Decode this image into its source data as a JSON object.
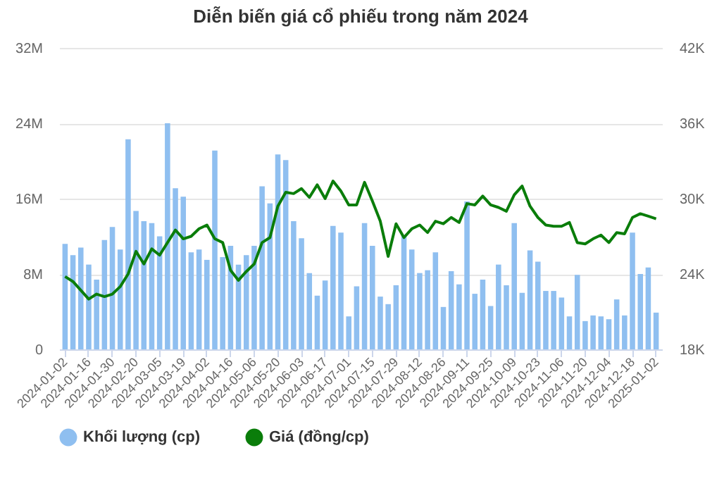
{
  "chart_data": {
    "type": "bar",
    "title": "Diễn biến giá cổ phiếu trong năm 2024",
    "categories": [
      "2024-01-02",
      null,
      null,
      "2024-01-16",
      null,
      null,
      "2024-01-30",
      null,
      null,
      "2024-02-20",
      null,
      null,
      "2024-03-05",
      null,
      null,
      "2024-03-19",
      null,
      null,
      "2024-04-02",
      null,
      null,
      "2024-04-16",
      null,
      null,
      "2024-05-06",
      null,
      null,
      "2024-05-20",
      null,
      null,
      "2024-06-03",
      null,
      null,
      "2024-06-17",
      null,
      null,
      "2024-07-01",
      null,
      null,
      "2024-07-15",
      null,
      null,
      "2024-07-29",
      null,
      null,
      "2024-08-12",
      null,
      null,
      "2024-08-26",
      null,
      null,
      "2024-09-11",
      null,
      null,
      "2024-09-25",
      null,
      null,
      "2024-10-09",
      null,
      null,
      "2024-10-23",
      null,
      null,
      "2024-11-06",
      null,
      null,
      "2024-11-20",
      null,
      null,
      "2024-12-04",
      null,
      null,
      "2024-12-18",
      null,
      null,
      "2025-01-02"
    ],
    "series": [
      {
        "name": "Khối lượng (cp)",
        "color": "#8fbff0",
        "values": [
          11.2,
          10.0,
          10.8,
          9.0,
          7.4,
          11.6,
          13.0,
          10.6,
          22.3,
          14.7,
          13.6,
          13.4,
          12.0,
          24.0,
          17.1,
          16.2,
          10.3,
          10.6,
          9.5,
          21.1,
          9.8,
          11.0,
          9.0,
          10.0,
          11.0,
          17.3,
          15.5,
          20.7,
          20.1,
          13.6,
          11.8,
          8.1,
          5.7,
          7.3,
          13.1,
          12.4,
          3.5,
          6.7,
          13.4,
          11.0,
          5.6,
          4.8,
          6.8,
          12.1,
          10.6,
          8.1,
          8.4,
          10.3,
          4.5,
          8.3,
          6.9,
          15.7,
          5.9,
          7.4,
          4.6,
          9.0,
          6.8,
          13.4,
          6.0,
          10.5,
          9.3,
          6.2,
          6.2,
          5.5,
          3.5,
          7.9,
          3.0,
          3.6,
          3.5,
          3.2,
          5.3,
          3.6,
          12.4,
          8.0,
          8.7,
          3.9
        ]
      },
      {
        "name": "Giá (đồng/cp)",
        "type": "line",
        "axis": "y2",
        "color": "#0a7d0a",
        "values": [
          23.8,
          23.4,
          22.7,
          22.0,
          22.4,
          22.2,
          22.4,
          23.0,
          24.0,
          25.8,
          24.8,
          26.0,
          25.5,
          26.5,
          27.5,
          26.8,
          27.0,
          27.6,
          27.9,
          26.8,
          26.5,
          24.3,
          23.5,
          24.2,
          24.8,
          26.5,
          26.9,
          29.4,
          30.5,
          30.4,
          30.8,
          30.1,
          31.1,
          30.0,
          31.4,
          30.6,
          29.5,
          29.5,
          31.3,
          29.8,
          28.2,
          25.4,
          28.0,
          26.9,
          27.6,
          27.9,
          27.3,
          28.2,
          28.0,
          28.5,
          28.1,
          29.6,
          29.5,
          30.2,
          29.5,
          29.3,
          29.0,
          30.3,
          31.0,
          29.4,
          28.5,
          27.9,
          27.8,
          27.8,
          28.1,
          26.5,
          26.4,
          26.8,
          27.1,
          26.5,
          27.3,
          27.2,
          28.5,
          28.8,
          28.6,
          28.4
        ]
      }
    ],
    "ylim": [
      0,
      32
    ],
    "yticks": [
      {
        "value": 0,
        "label": "0"
      },
      {
        "value": 8,
        "label": "8M"
      },
      {
        "value": 16,
        "label": "16M"
      },
      {
        "value": 24,
        "label": "24M"
      },
      {
        "value": 32,
        "label": "32M"
      }
    ],
    "y2lim": [
      18,
      42
    ],
    "y2ticks": [
      {
        "value": 18,
        "label": "18K"
      },
      {
        "value": 24,
        "label": "24K"
      },
      {
        "value": 30,
        "label": "30K"
      },
      {
        "value": 36,
        "label": "36K"
      },
      {
        "value": 42,
        "label": "42K"
      }
    ],
    "grid": "y",
    "legend": "bottom"
  }
}
